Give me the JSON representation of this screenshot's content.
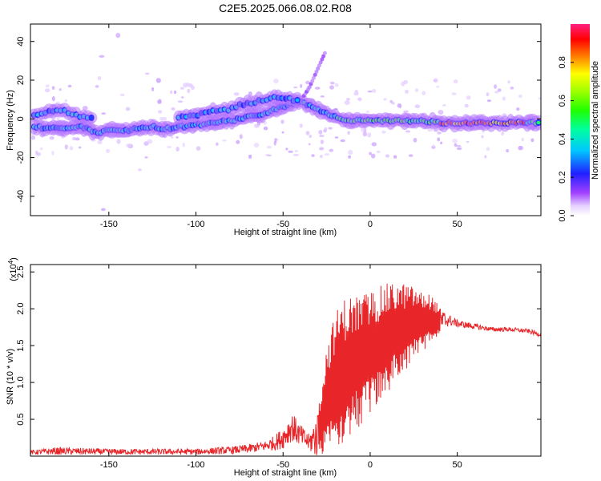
{
  "title": "C2E5.2025.066.08.02.R08",
  "chart_data": [
    {
      "type": "heatmap",
      "name": "spectrogram",
      "xlabel": "Height of straight line (km)",
      "ylabel": "Frequency (Hz)",
      "xlim": [
        -195,
        98
      ],
      "ylim": [
        -50,
        49
      ],
      "xticks": [
        -150,
        -100,
        -50,
        0,
        50
      ],
      "yticks": [
        -40,
        -20,
        0,
        20,
        40
      ],
      "colorbar": {
        "label": "Normalized spectral amplitude",
        "range": [
          0.0,
          1.0
        ],
        "ticks": [
          "0.0",
          "0.2",
          "0.4",
          "0.6",
          "0.8"
        ]
      },
      "ridge": {
        "x": [
          -193,
          -185,
          -178,
          -172,
          -166,
          -160,
          -155,
          -150,
          -145,
          -140,
          -135,
          -130,
          -125,
          -120,
          -115,
          -110,
          -105,
          -100,
          -95,
          -90,
          -85,
          -80,
          -75,
          -70,
          -65,
          -60,
          -55,
          -50,
          -45,
          -40,
          -35,
          -30,
          -25,
          -20,
          -15,
          -10,
          -5,
          0,
          5,
          10,
          15,
          20,
          30,
          40,
          50,
          60,
          70,
          80,
          90,
          98
        ],
        "y": [
          -4,
          -5,
          -5,
          -5,
          -4,
          -6,
          -7,
          -6,
          -6,
          -6,
          -5,
          -5,
          -4,
          -5,
          -5,
          -4,
          -4,
          -3,
          -3,
          -2,
          -1,
          -1,
          0,
          1,
          2,
          3,
          5,
          6,
          8,
          9,
          7,
          5,
          3,
          1,
          0,
          -1,
          -1,
          -1,
          -1,
          -1,
          -1,
          -1,
          -1,
          -2,
          -2,
          -2,
          -2,
          -2,
          -2,
          -2
        ]
      },
      "upper_branch": {
        "x": [
          -193,
          -185,
          -178,
          -172,
          -166,
          -160
        ],
        "y": [
          2,
          4,
          5,
          3,
          1,
          0
        ]
      },
      "upper_branch2": {
        "x": [
          -110,
          -100,
          -90,
          -80,
          -75,
          -70,
          -65,
          -60,
          -55,
          -50,
          -45,
          -40
        ],
        "y": [
          1,
          2,
          4,
          5,
          7,
          8,
          9,
          10,
          11,
          11,
          10,
          9
        ]
      },
      "spur": {
        "x": [
          -38,
          -35,
          -32,
          -30,
          -28,
          -26
        ],
        "y": [
          12,
          16,
          22,
          26,
          30,
          34
        ]
      }
    },
    {
      "type": "line",
      "name": "snr",
      "xlabel": "Height of straight line (km)",
      "ylabel": "SNR (10 * v/v)",
      "scale_label": "(x10",
      "scale_exponent": "4",
      "xlim": [
        -195,
        98
      ],
      "ylim": [
        0.0,
        2.6
      ],
      "xticks": [
        -150,
        -100,
        -50,
        0,
        50
      ],
      "yticks": [
        "0.5",
        "1.0",
        "1.5",
        "2.0",
        "2.5"
      ],
      "color": "#e8262a",
      "envelope": {
        "x": [
          -195,
          -180,
          -150,
          -120,
          -100,
          -80,
          -70,
          -60,
          -55,
          -50,
          -45,
          -40,
          -35,
          -30,
          -25,
          -20,
          -15,
          -10,
          -5,
          0,
          5,
          10,
          15,
          20,
          25,
          30,
          35,
          40,
          45,
          50,
          60,
          70,
          80,
          90,
          98
        ],
        "base": [
          0.05,
          0.07,
          0.06,
          0.06,
          0.06,
          0.08,
          0.1,
          0.14,
          0.18,
          0.25,
          0.4,
          0.28,
          0.18,
          0.3,
          0.8,
          1.05,
          1.15,
          1.25,
          1.3,
          1.4,
          1.5,
          1.6,
          1.7,
          1.75,
          1.8,
          1.82,
          1.85,
          1.82,
          1.85,
          1.8,
          1.76,
          1.72,
          1.72,
          1.7,
          1.65
        ],
        "amp": [
          0.03,
          0.05,
          0.04,
          0.04,
          0.04,
          0.05,
          0.06,
          0.07,
          0.1,
          0.15,
          0.2,
          0.15,
          0.12,
          0.35,
          0.7,
          0.9,
          1.0,
          0.95,
          0.9,
          0.85,
          0.8,
          0.75,
          0.65,
          0.6,
          0.5,
          0.4,
          0.35,
          0.2,
          0.08,
          0.05,
          0.04,
          0.03,
          0.03,
          0.03,
          0.03
        ]
      }
    }
  ]
}
